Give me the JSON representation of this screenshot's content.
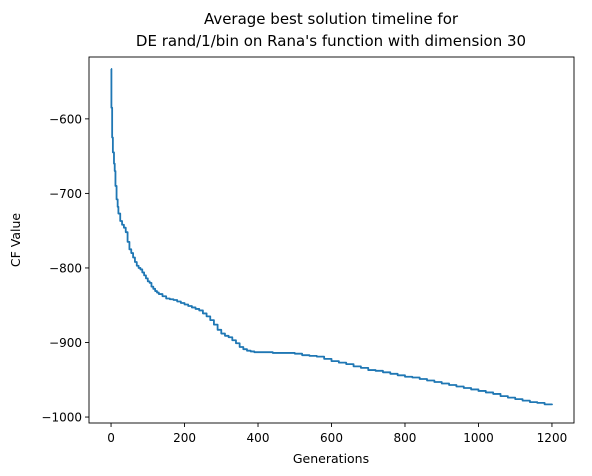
{
  "chart_data": {
    "type": "line",
    "title": "Average best solution timeline for\nDE rand/1/bin on Rana's function with dimension 30",
    "xlabel": "Generations",
    "ylabel": "CF Value",
    "xlim": [
      -60,
      1260
    ],
    "ylim": [
      -1008,
      -517
    ],
    "xticks": [
      0,
      200,
      400,
      600,
      800,
      1000,
      1200
    ],
    "yticks": [
      -600,
      -700,
      -800,
      -900,
      -1000
    ],
    "grid": false,
    "legend": "none",
    "line_color": "#1f77b4",
    "series": [
      {
        "x": [
          0,
          1,
          3,
          5,
          8,
          10,
          12,
          15,
          18,
          20,
          25,
          30,
          35,
          40,
          45,
          50,
          55,
          60,
          65,
          70,
          75,
          80,
          85,
          90,
          95,
          100,
          105,
          110,
          115,
          120,
          125,
          130,
          140,
          150,
          160,
          170,
          180,
          190,
          200,
          210,
          220,
          230,
          240,
          250,
          260,
          270,
          280,
          290,
          300,
          310,
          320,
          330,
          340,
          350,
          360,
          370,
          380,
          390,
          400,
          420,
          440,
          460,
          480,
          500,
          520,
          540,
          560,
          580,
          600,
          620,
          640,
          660,
          680,
          700,
          720,
          740,
          760,
          780,
          800,
          820,
          840,
          860,
          880,
          900,
          920,
          940,
          960,
          980,
          1000,
          1020,
          1040,
          1060,
          1080,
          1100,
          1120,
          1140,
          1160,
          1180,
          1200
        ],
        "y": [
          -533,
          -585,
          -625,
          -645,
          -660,
          -670,
          -690,
          -708,
          -718,
          -727,
          -737,
          -742,
          -746,
          -752,
          -765,
          -775,
          -780,
          -786,
          -792,
          -797,
          -800,
          -802,
          -806,
          -810,
          -814,
          -818,
          -820,
          -825,
          -828,
          -831,
          -833,
          -835,
          -838,
          -841,
          -842,
          -843,
          -845,
          -847,
          -849,
          -851,
          -853,
          -855,
          -857,
          -861,
          -865,
          -870,
          -876,
          -883,
          -888,
          -891,
          -893,
          -897,
          -901,
          -906,
          -909,
          -911,
          -912,
          -913,
          -913,
          -913,
          -914,
          -914,
          -914,
          -915,
          -917,
          -918,
          -919,
          -922,
          -925,
          -927,
          -929,
          -932,
          -934,
          -937,
          -938,
          -940,
          -942,
          -944,
          -946,
          -947,
          -949,
          -951,
          -953,
          -955,
          -957,
          -959,
          -961,
          -963,
          -965,
          -967,
          -969,
          -972,
          -974,
          -976,
          -978,
          -980,
          -981,
          -983,
          -984
        ]
      }
    ]
  }
}
